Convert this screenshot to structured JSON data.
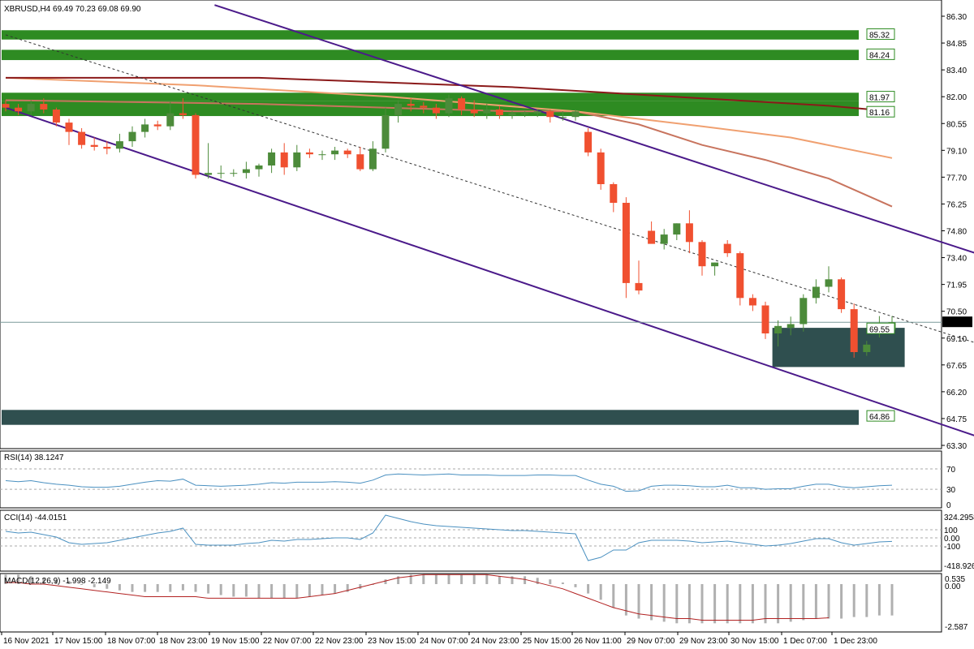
{
  "header": {
    "title": "XBRUSD,H4  69.49 70.23 69.08 69.90"
  },
  "price_axis": {
    "labels": [
      "86.30",
      "84.85",
      "83.40",
      "82.00",
      "80.55",
      "79.10",
      "77.70",
      "76.25",
      "74.80",
      "73.40",
      "71.95",
      "70.50",
      "69.10",
      "67.65",
      "66.20",
      "64.75",
      "63.30"
    ],
    "current_price": "69.90",
    "level_tags": [
      "85.32",
      "84.24",
      "81.97",
      "81.16",
      "69.55",
      "64.86"
    ]
  },
  "time_axis": {
    "labels": [
      "16 Nov 2021",
      "17 Nov 15:00",
      "18 Nov 07:00",
      "18 Nov 23:00",
      "19 Nov 15:00",
      "22 Nov 07:00",
      "22 Nov 23:00",
      "23 Nov 15:00",
      "24 Nov 07:00",
      "24 Nov 23:00",
      "25 Nov 15:00",
      "26 Nov 11:00",
      "29 Nov 07:00",
      "29 Nov 23:00",
      "30 Nov 15:00",
      "1 Dec 07:00",
      "1 Dec 23:00"
    ]
  },
  "indicators": {
    "rsi": {
      "label": "RSI(14) 38.1247",
      "levels": [
        "70",
        "30",
        "0"
      ]
    },
    "cci": {
      "label": "CCI(14) -44.0151",
      "levels": [
        "324.2958",
        "100",
        "0.00",
        "-100",
        "-418.926"
      ]
    },
    "macd": {
      "label": "MACD(12,26,9) -1.998 -2.149",
      "levels": [
        "0.535",
        "0.00",
        "-2.587"
      ]
    }
  },
  "colors": {
    "bull": "#4c8b3a",
    "bear": "#f05030",
    "zone_green": "#2e8b22",
    "zone_dark": "#2f4f4f",
    "channel": "#4b1a8a",
    "ma_fast": "#c8745e",
    "ma_mid": "#f0a070",
    "ma_slow": "#8b1a1a",
    "indicator_line": "#4a90c0",
    "macd_signal": "#b22222",
    "macd_hist": "#b0b0b0"
  },
  "chart_data": {
    "type": "candlestick",
    "symbol": "XBRUSD",
    "timeframe": "H4",
    "ylim": [
      63.3,
      86.3
    ],
    "candles": [
      [
        81.6,
        81.8,
        81.2,
        81.4
      ],
      [
        81.4,
        81.6,
        81.0,
        81.2
      ],
      [
        81.2,
        81.8,
        81.0,
        81.6
      ],
      [
        81.6,
        81.9,
        81.1,
        81.3
      ],
      [
        81.3,
        81.4,
        80.4,
        80.6
      ],
      [
        80.6,
        80.8,
        79.4,
        80.1
      ],
      [
        80.1,
        80.3,
        79.2,
        79.4
      ],
      [
        79.4,
        79.8,
        79.1,
        79.3
      ],
      [
        79.3,
        79.6,
        78.9,
        79.2
      ],
      [
        79.2,
        80.0,
        79.0,
        79.6
      ],
      [
        79.6,
        80.4,
        79.3,
        80.1
      ],
      [
        80.1,
        80.8,
        79.8,
        80.5
      ],
      [
        80.5,
        80.7,
        80.2,
        80.4
      ],
      [
        80.4,
        81.7,
        80.2,
        81.1
      ],
      [
        81.1,
        81.9,
        80.8,
        81.0
      ],
      [
        81.0,
        81.1,
        77.6,
        77.8
      ],
      [
        77.8,
        79.5,
        77.6,
        77.9
      ],
      [
        77.9,
        78.3,
        77.6,
        77.9
      ],
      [
        77.9,
        78.1,
        77.7,
        77.9
      ],
      [
        77.9,
        78.5,
        77.6,
        78.1
      ],
      [
        78.1,
        78.4,
        77.7,
        78.3
      ],
      [
        78.3,
        79.2,
        77.9,
        79.0
      ],
      [
        79.0,
        79.5,
        77.8,
        78.2
      ],
      [
        78.2,
        79.4,
        78.0,
        79.0
      ],
      [
        79.0,
        79.2,
        78.7,
        78.9
      ],
      [
        78.9,
        79.1,
        78.6,
        78.9
      ],
      [
        78.9,
        79.3,
        78.6,
        79.1
      ],
      [
        79.1,
        79.2,
        78.7,
        78.9
      ],
      [
        78.9,
        79.3,
        78.0,
        78.1
      ],
      [
        78.1,
        79.6,
        78.0,
        79.2
      ],
      [
        79.2,
        81.4,
        79.0,
        81.0
      ],
      [
        81.0,
        81.8,
        80.6,
        81.6
      ],
      [
        81.6,
        81.9,
        81.2,
        81.5
      ],
      [
        81.5,
        81.7,
        81.1,
        81.4
      ],
      [
        81.4,
        81.6,
        80.8,
        81.1
      ],
      [
        81.1,
        82.1,
        80.9,
        81.9
      ],
      [
        81.9,
        82.0,
        81.0,
        81.3
      ],
      [
        81.3,
        81.8,
        80.9,
        81.1
      ],
      [
        81.1,
        81.6,
        80.8,
        81.3
      ],
      [
        81.3,
        81.5,
        80.8,
        81.0
      ],
      [
        81.0,
        81.2,
        80.8,
        81.1
      ],
      [
        81.1,
        81.2,
        80.9,
        81.1
      ],
      [
        81.1,
        81.3,
        80.9,
        81.2
      ],
      [
        81.2,
        81.3,
        80.6,
        80.9
      ],
      [
        80.9,
        81.2,
        80.7,
        80.9
      ],
      [
        80.9,
        81.3,
        80.7,
        81.2
      ],
      [
        80.1,
        80.3,
        78.8,
        79.0
      ],
      [
        79.0,
        79.2,
        77.0,
        77.3
      ],
      [
        77.3,
        77.4,
        75.8,
        76.3
      ],
      [
        76.3,
        76.6,
        71.2,
        72.0
      ],
      [
        72.0,
        73.2,
        71.4,
        71.6
      ],
      [
        74.8,
        75.3,
        74.2,
        74.1
      ],
      [
        74.1,
        74.9,
        73.8,
        74.6
      ],
      [
        74.6,
        75.2,
        74.3,
        75.2
      ],
      [
        75.2,
        75.9,
        73.6,
        74.2
      ],
      [
        74.2,
        74.3,
        72.4,
        72.9
      ],
      [
        72.9,
        73.1,
        72.4,
        73.1
      ],
      [
        74.1,
        74.3,
        73.4,
        73.6
      ],
      [
        73.6,
        73.7,
        70.8,
        71.2
      ],
      [
        71.2,
        71.4,
        70.5,
        70.8
      ],
      [
        70.8,
        71.0,
        69.0,
        69.3
      ],
      [
        69.3,
        70.0,
        68.6,
        69.7
      ],
      [
        69.6,
        70.2,
        69.2,
        69.8
      ],
      [
        69.8,
        71.4,
        69.4,
        71.2
      ],
      [
        71.2,
        72.2,
        70.9,
        71.8
      ],
      [
        71.8,
        72.9,
        71.5,
        72.2
      ],
      [
        72.2,
        72.3,
        70.4,
        70.6
      ],
      [
        70.6,
        70.9,
        68.0,
        68.3
      ],
      [
        68.3,
        68.9,
        68.1,
        68.7
      ],
      [
        69.49,
        70.23,
        69.08,
        69.5
      ],
      [
        69.5,
        70.23,
        69.4,
        69.9
      ]
    ],
    "horizontal_zones": [
      {
        "from": 85.05,
        "to": 85.55,
        "color": "green"
      },
      {
        "from": 83.95,
        "to": 84.5,
        "color": "green"
      },
      {
        "from": 81.75,
        "to": 82.2,
        "color": "green"
      },
      {
        "from": 80.95,
        "to": 81.75,
        "color": "green"
      },
      {
        "from": 64.4,
        "to": 65.2,
        "color": "dark"
      }
    ],
    "box_zone": {
      "x_from": 61,
      "x_to": 71,
      "from": 67.5,
      "to": 69.6
    },
    "current_price_line": 69.9,
    "channel_upper": [
      [
        16.5,
        86.9
      ],
      [
        77.5,
        73.4
      ]
    ],
    "channel_lower": [
      [
        0,
        81.4
      ],
      [
        77.5,
        63.6
      ]
    ],
    "channel_mid_dotted": [
      [
        0,
        85.3
      ],
      [
        77.5,
        68.6
      ]
    ],
    "moving_averages": [
      {
        "color": "ma_fast",
        "points": [
          [
            0,
            81.8
          ],
          [
            20,
            81.6
          ],
          [
            40,
            81.2
          ],
          [
            45,
            81.2
          ],
          [
            50,
            80.5
          ],
          [
            55,
            79.4
          ],
          [
            60,
            78.6
          ],
          [
            65,
            77.6
          ],
          [
            70,
            76.1
          ]
        ]
      },
      {
        "color": "ma_mid",
        "points": [
          [
            0,
            83.0
          ],
          [
            15,
            82.6
          ],
          [
            30,
            82.0
          ],
          [
            45,
            81.2
          ],
          [
            55,
            80.4
          ],
          [
            62,
            79.8
          ],
          [
            70,
            78.7
          ]
        ]
      },
      {
        "color": "ma_slow",
        "points": [
          [
            0,
            83.0
          ],
          [
            20,
            83.0
          ],
          [
            40,
            82.5
          ],
          [
            55,
            81.9
          ],
          [
            65,
            81.5
          ],
          [
            70,
            81.2
          ]
        ]
      }
    ],
    "rsi_values": [
      47,
      45,
      47,
      43,
      40,
      38,
      35,
      34,
      34,
      36,
      40,
      44,
      47,
      46,
      50,
      38,
      37,
      36,
      37,
      38,
      40,
      43,
      42,
      44,
      44,
      44,
      45,
      44,
      42,
      48,
      58,
      60,
      59,
      58,
      59,
      60,
      58,
      58,
      58,
      57,
      57,
      57,
      58,
      58,
      57,
      57,
      48,
      40,
      36,
      26,
      27,
      36,
      38,
      38,
      37,
      35,
      35,
      38,
      33,
      33,
      30,
      31,
      31,
      36,
      40,
      40,
      35,
      33,
      35,
      37,
      38
    ],
    "cci_values": [
      80,
      60,
      70,
      40,
      10,
      -60,
      -80,
      -70,
      -60,
      -30,
      0,
      30,
      60,
      80,
      120,
      -80,
      -90,
      -90,
      -90,
      -70,
      -60,
      -30,
      -40,
      -20,
      -20,
      -10,
      0,
      0,
      -20,
      60,
      280,
      240,
      200,
      170,
      150,
      140,
      130,
      120,
      110,
      100,
      90,
      90,
      80,
      70,
      60,
      50,
      -280,
      -240,
      -150,
      -150,
      -60,
      -30,
      -30,
      -30,
      -40,
      -60,
      -50,
      -40,
      -60,
      -80,
      -100,
      -90,
      -70,
      -40,
      -10,
      -10,
      -60,
      -90,
      -70,
      -50,
      -44
    ],
    "macd_hist": [
      0.6,
      0.6,
      0.5,
      0.4,
      0.3,
      0.2,
      0.0,
      -0.2,
      -0.3,
      -0.4,
      -0.5,
      -0.5,
      -0.5,
      -0.5,
      -0.4,
      -0.5,
      -0.6,
      -0.7,
      -0.8,
      -0.8,
      -0.9,
      -0.9,
      -0.9,
      -0.9,
      -0.8,
      -0.7,
      -0.6,
      -0.5,
      -0.3,
      0.0,
      0.3,
      0.5,
      0.6,
      0.6,
      0.6,
      0.6,
      0.6,
      0.6,
      0.6,
      0.5,
      0.5,
      0.5,
      0.4,
      0.3,
      0.1,
      -0.2,
      -0.6,
      -1.0,
      -1.5,
      -2.0,
      -2.2,
      -2.3,
      -2.4,
      -2.5,
      -2.5,
      -2.5,
      -2.5,
      -2.5,
      -2.5,
      -2.5,
      -2.5,
      -2.5,
      -2.4,
      -2.3,
      -2.2,
      -2.2,
      -2.2,
      -2.1,
      -2.1,
      -2.0,
      -2.0
    ],
    "macd_signal": [
      0.1,
      0.1,
      0.0,
      0.0,
      -0.1,
      -0.2,
      -0.3,
      -0.4,
      -0.5,
      -0.6,
      -0.7,
      -0.8,
      -0.8,
      -0.8,
      -0.8,
      -0.8,
      -0.9,
      -0.9,
      -0.9,
      -0.9,
      -0.9,
      -0.9,
      -0.9,
      -0.9,
      -0.8,
      -0.7,
      -0.6,
      -0.4,
      -0.2,
      0.0,
      0.2,
      0.4,
      0.5,
      0.6,
      0.6,
      0.6,
      0.6,
      0.6,
      0.6,
      0.5,
      0.4,
      0.3,
      0.1,
      -0.1,
      -0.3,
      -0.6,
      -0.9,
      -1.2,
      -1.5,
      -1.7,
      -1.9,
      -2.0,
      -2.1,
      -2.2,
      -2.2,
      -2.3,
      -2.3,
      -2.3,
      -2.3,
      -2.3,
      -2.2,
      -2.2,
      -2.2,
      -2.2,
      -2.2,
      -2.15
    ],
    "macd_ylim": [
      -2.8,
      0.8
    ]
  }
}
